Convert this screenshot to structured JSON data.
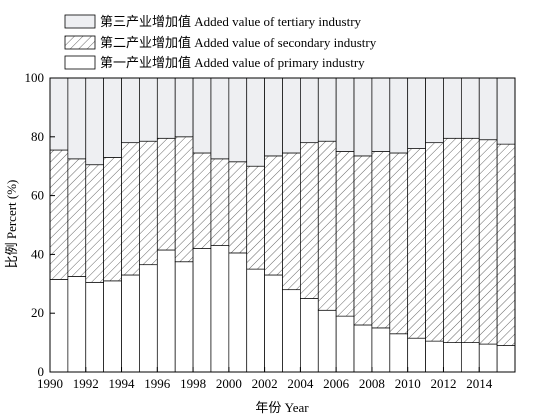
{
  "chart_data": {
    "type": "bar",
    "stacked": true,
    "percent": true,
    "x": [
      1990,
      1991,
      1992,
      1993,
      1994,
      1995,
      1996,
      1997,
      1998,
      1999,
      2000,
      2001,
      2002,
      2003,
      2004,
      2005,
      2006,
      2007,
      2008,
      2009,
      2010,
      2011,
      2012,
      2013,
      2014,
      2015
    ],
    "xticks": [
      "1990",
      "1992",
      "1994",
      "1996",
      "1998",
      "2000",
      "2002",
      "2004",
      "2006",
      "2008",
      "2010",
      "2012",
      "2014"
    ],
    "xlabel": "年份 Year",
    "ylabel": "比例 Percert (%)",
    "ylim": [
      0,
      100
    ],
    "yticks": [
      "0",
      "20",
      "40",
      "60",
      "80",
      "100"
    ],
    "legend_position": "top",
    "series": [
      {
        "name": "第一产业增加值 Added value of primary industry",
        "fill": "white",
        "values": [
          31.5,
          32.5,
          30.5,
          31,
          33,
          36.5,
          41.5,
          37.5,
          42,
          43,
          40.5,
          35,
          33,
          28,
          25,
          21,
          19,
          16,
          15,
          13,
          11.5,
          10.5,
          10,
          10,
          9.5,
          9
        ]
      },
      {
        "name": "第二产业增加值 Added value of secondary industry",
        "fill": "hatch",
        "values": [
          44,
          40,
          40,
          42,
          45,
          42,
          38,
          42.5,
          32.5,
          29.5,
          31,
          35,
          40.5,
          46.5,
          53,
          57.5,
          56,
          57.5,
          60,
          61.5,
          64.5,
          67.5,
          69.5,
          69.5,
          69.5,
          68.5
        ]
      },
      {
        "name": "第三产业增加值 Added value of tertiary industry",
        "fill": "light-gray",
        "values": [
          24.5,
          27.5,
          29.5,
          27,
          22,
          21.5,
          20.5,
          20,
          25.5,
          27.5,
          28.5,
          30,
          26.5,
          25.5,
          22,
          21.5,
          25,
          26.5,
          25,
          25.5,
          24,
          22,
          20.5,
          20.5,
          21,
          22.5
        ]
      }
    ],
    "colors": {
      "tertiary": "#eeeff2",
      "secondary_bg": "#ffffff",
      "hatch": "#555555",
      "primary": "#ffffff",
      "axis": "#000000"
    }
  }
}
